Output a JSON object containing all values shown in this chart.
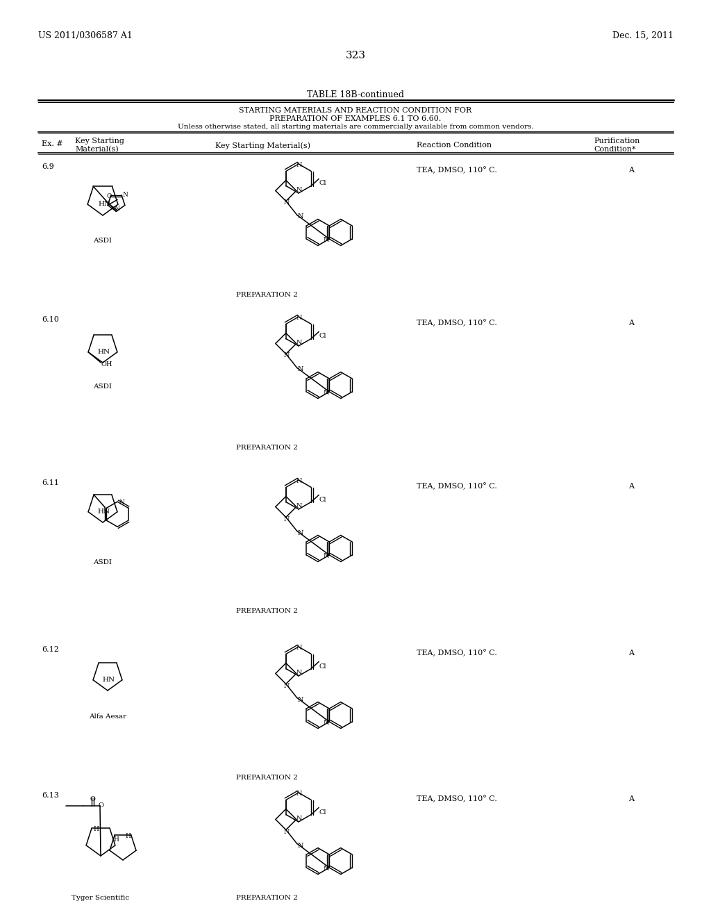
{
  "page_number": "323",
  "patent_number": "US 2011/0306587 A1",
  "patent_date": "Dec. 15, 2011",
  "table_title": "TABLE 18B-continued",
  "table_subtitle1": "STARTING MATERIALS AND REACTION CONDITION FOR",
  "table_subtitle2": "PREPARATION OF EXAMPLES 6.1 TO 6.60.",
  "table_subtitle3": "Unless otherwise stated, all starting materials are commercially available from common vendors.",
  "col_ex": "Ex. #",
  "col_key1a": "Key Starting",
  "col_key1b": "Material(s)",
  "col_key2": "Key Starting Material(s)",
  "col_reaction": "Reaction Condition",
  "col_purif_a": "Purification",
  "col_purif_b": "Condition*",
  "rows": [
    {
      "ex": "6.9",
      "left_vendor": "ASDI",
      "right_label": "PREPARATION 2",
      "reaction": "TEA, DMSO, 110° C.",
      "purif": "A"
    },
    {
      "ex": "6.10",
      "left_vendor": "ASDI",
      "right_label": "PREPARATION 2",
      "reaction": "TEA, DMSO, 110° C.",
      "purif": "A"
    },
    {
      "ex": "6.11",
      "left_vendor": "ASDI",
      "right_label": "PREPARATION 2",
      "reaction": "TEA, DMSO, 110° C.",
      "purif": "A"
    },
    {
      "ex": "6.12",
      "left_vendor": "Alfa Aesar",
      "right_label": "PREPARATION 2",
      "reaction": "TEA, DMSO, 110° C.",
      "purif": "A"
    },
    {
      "ex": "6.13",
      "left_vendor": "Tyger Scientific",
      "right_label": "PREPARATION 2",
      "reaction": "TEA, DMSO, 110° C.",
      "purif": "A"
    }
  ],
  "background_color": "#ffffff"
}
